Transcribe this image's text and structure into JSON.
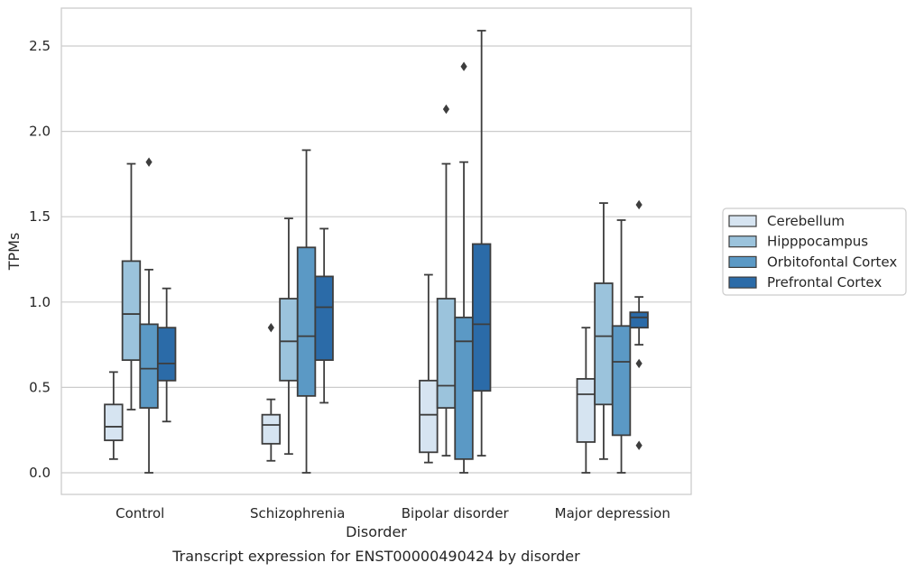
{
  "chart_data": {
    "type": "box",
    "title": "",
    "caption": "Transcript expression for ENST00000490424 by disorder",
    "xlabel": "Disorder",
    "ylabel": "TPMs",
    "ylim": [
      -0.12,
      2.73
    ],
    "yticks": [
      0.0,
      0.5,
      1.0,
      1.5,
      2.0,
      2.5
    ],
    "ytick_labels": [
      "0.0",
      "0.5",
      "1.0",
      "1.5",
      "2.0",
      "2.5"
    ],
    "grid": "horizontal",
    "legend_position": "right",
    "categories": [
      "Control",
      "Schizophrenia",
      "Bipolar disorder",
      "Major depression"
    ],
    "series": [
      {
        "name": "Cerebellum",
        "color": "#d6e4f1",
        "boxes": [
          {
            "whislo": 0.08,
            "q1": 0.19,
            "med": 0.27,
            "q3": 0.4,
            "whishi": 0.59,
            "fliers": []
          },
          {
            "whislo": 0.07,
            "q1": 0.17,
            "med": 0.28,
            "q3": 0.34,
            "whishi": 0.43,
            "fliers": [
              0.85
            ]
          },
          {
            "whislo": 0.06,
            "q1": 0.12,
            "med": 0.34,
            "q3": 0.54,
            "whishi": 1.16,
            "fliers": []
          },
          {
            "whislo": 0.0,
            "q1": 0.18,
            "med": 0.46,
            "q3": 0.55,
            "whishi": 0.85,
            "fliers": []
          }
        ]
      },
      {
        "name": "Hipppocampus",
        "color": "#9bc3dc",
        "boxes": [
          {
            "whislo": 0.37,
            "q1": 0.66,
            "med": 0.93,
            "q3": 1.24,
            "whishi": 1.81,
            "fliers": []
          },
          {
            "whislo": 0.11,
            "q1": 0.54,
            "med": 0.77,
            "q3": 1.02,
            "whishi": 1.49,
            "fliers": []
          },
          {
            "whislo": 0.1,
            "q1": 0.38,
            "med": 0.51,
            "q3": 1.02,
            "whishi": 1.81,
            "fliers": [
              2.13
            ]
          },
          {
            "whislo": 0.08,
            "q1": 0.4,
            "med": 0.8,
            "q3": 1.11,
            "whishi": 1.58,
            "fliers": []
          }
        ]
      },
      {
        "name": "Orbitofontal Cortex",
        "color": "#5b99c5",
        "boxes": [
          {
            "whislo": 0.0,
            "q1": 0.38,
            "med": 0.61,
            "q3": 0.87,
            "whishi": 1.19,
            "fliers": [
              1.82
            ]
          },
          {
            "whislo": 0.0,
            "q1": 0.45,
            "med": 0.8,
            "q3": 1.32,
            "whishi": 1.89,
            "fliers": []
          },
          {
            "whislo": 0.0,
            "q1": 0.08,
            "med": 0.77,
            "q3": 0.91,
            "whishi": 1.82,
            "fliers": [
              2.38
            ]
          },
          {
            "whislo": 0.0,
            "q1": 0.22,
            "med": 0.65,
            "q3": 0.86,
            "whishi": 1.48,
            "fliers": []
          }
        ]
      },
      {
        "name": "Prefrontal Cortex",
        "color": "#2b6ba8",
        "boxes": [
          {
            "whislo": 0.3,
            "q1": 0.54,
            "med": 0.64,
            "q3": 0.85,
            "whishi": 1.08,
            "fliers": []
          },
          {
            "whislo": 0.41,
            "q1": 0.66,
            "med": 0.97,
            "q3": 1.15,
            "whishi": 1.43,
            "fliers": []
          },
          {
            "whislo": 0.1,
            "q1": 0.48,
            "med": 0.87,
            "q3": 1.34,
            "whishi": 2.59,
            "fliers": []
          },
          {
            "whislo": 0.75,
            "q1": 0.85,
            "med": 0.91,
            "q3": 0.94,
            "whishi": 1.03,
            "fliers": [
              1.57,
              0.64,
              0.16
            ]
          }
        ]
      }
    ]
  }
}
